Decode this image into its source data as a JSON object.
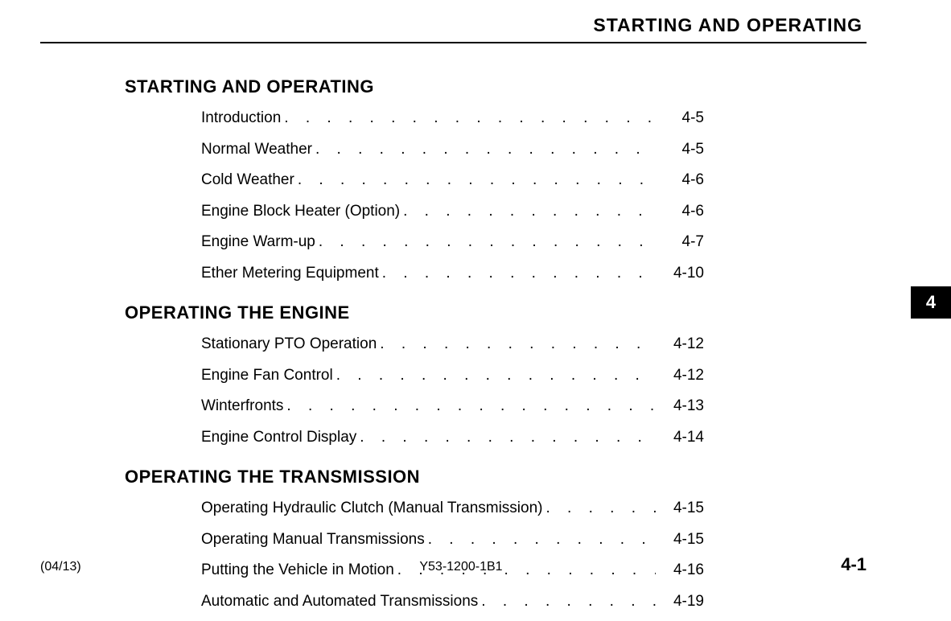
{
  "header": {
    "title": "STARTING AND OPERATING"
  },
  "sideTab": {
    "label": "4"
  },
  "sections": [
    {
      "heading": "STARTING AND OPERATING",
      "entries": [
        {
          "label": "Introduction",
          "page": "4-5"
        },
        {
          "label": "Normal Weather",
          "page": "4-5"
        },
        {
          "label": "Cold Weather",
          "page": "4-6"
        },
        {
          "label": "Engine Block Heater (Option)",
          "page": "4-6"
        },
        {
          "label": "Engine Warm-up",
          "page": "4-7"
        },
        {
          "label": "Ether Metering Equipment",
          "page": "4-10"
        }
      ]
    },
    {
      "heading": "OPERATING THE ENGINE",
      "entries": [
        {
          "label": "Stationary PTO Operation",
          "page": "4-12"
        },
        {
          "label": "Engine Fan Control",
          "page": "4-12"
        },
        {
          "label": "Winterfronts",
          "page": "4-13"
        },
        {
          "label": "Engine Control Display",
          "page": "4-14"
        }
      ]
    },
    {
      "heading": "OPERATING THE TRANSMISSION",
      "entries": [
        {
          "label": "Operating Hydraulic Clutch (Manual Transmission)",
          "page": "4-15"
        },
        {
          "label": "Operating Manual Transmissions",
          "page": "4-15"
        },
        {
          "label": "Putting the Vehicle in Motion",
          "page": "4-16"
        },
        {
          "label": "Automatic and Automated Transmissions",
          "page": "4-19"
        }
      ]
    }
  ],
  "footer": {
    "left": "(04/13)",
    "center": "Y53-1200-1B1",
    "right": "4-1"
  },
  "dotsFill": ". . . . . . . . . . . . . . . . . . . . . . . . . . . . . . . ."
}
